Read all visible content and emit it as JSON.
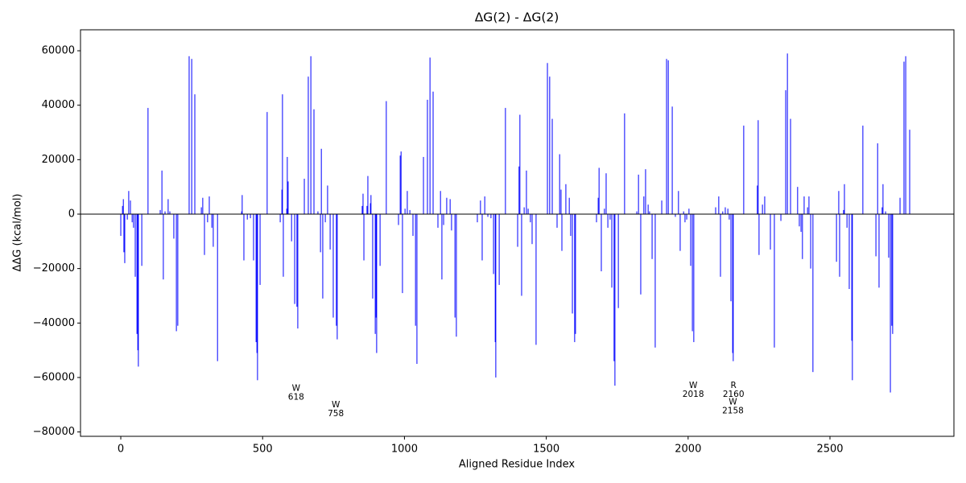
{
  "chart_data": {
    "type": "bar",
    "title": "ΔG(2) - ΔG(2)",
    "x_label": "Aligned Residue Index",
    "y_label": "ΔΔG (kcal/mol)",
    "color": "#0000ff",
    "xlim": [
      -142,
      2937
    ],
    "ylim": [
      -81600,
      67700
    ],
    "xticks": [
      0,
      500,
      1000,
      1500,
      2000,
      2500
    ],
    "yticks": [
      {
        "value": -80000,
        "label": "−80000"
      },
      {
        "value": -60000,
        "label": "−60000"
      },
      {
        "value": -40000,
        "label": "−40000"
      },
      {
        "value": -20000,
        "label": "−20000"
      },
      0,
      20000,
      40000,
      60000
    ],
    "x": [
      0,
      6,
      9,
      11,
      14,
      23,
      28,
      34,
      40,
      45,
      51,
      57,
      60,
      62,
      74,
      96,
      139,
      145,
      150,
      156,
      167,
      173,
      187,
      196,
      201,
      241,
      250,
      261,
      284,
      289,
      295,
      306,
      312,
      321,
      326,
      341,
      426,
      428,
      434,
      446,
      457,
      468,
      477,
      480,
      482,
      491,
      516,
      562,
      568,
      570,
      573,
      585,
      587,
      590,
      602,
      613,
      621,
      624,
      647,
      661,
      670,
      681,
      695,
      704,
      707,
      712,
      721,
      729,
      738,
      749,
      760,
      763,
      851,
      854,
      857,
      868,
      871,
      880,
      882,
      888,
      897,
      900,
      902,
      914,
      936,
      979,
      985,
      988,
      993,
      1002,
      1010,
      1019,
      1030,
      1039,
      1044,
      1067,
      1081,
      1090,
      1101,
      1118,
      1127,
      1132,
      1138,
      1149,
      1161,
      1166,
      1178,
      1183,
      1257,
      1268,
      1274,
      1283,
      1294,
      1305,
      1314,
      1320,
      1322,
      1334,
      1356,
      1399,
      1404,
      1407,
      1413,
      1422,
      1430,
      1436,
      1444,
      1450,
      1464,
      1504,
      1512,
      1521,
      1538,
      1547,
      1552,
      1555,
      1569,
      1581,
      1586,
      1592,
      1600,
      1603,
      1677,
      1683,
      1686,
      1694,
      1705,
      1711,
      1717,
      1725,
      1731,
      1739,
      1742,
      1754,
      1776,
      1819,
      1825,
      1833,
      1844,
      1850,
      1859,
      1864,
      1873,
      1884,
      1907,
      1924,
      1930,
      1944,
      1955,
      1966,
      1972,
      1984,
      1989,
      1995,
      2003,
      2009,
      2015,
      2020,
      2097,
      2108,
      2114,
      2122,
      2131,
      2140,
      2145,
      2151,
      2157,
      2159,
      2196,
      2244,
      2247,
      2250,
      2262,
      2270,
      2290,
      2304,
      2327,
      2344,
      2350,
      2361,
      2386,
      2392,
      2398,
      2403,
      2409,
      2421,
      2426,
      2432,
      2440,
      2523,
      2531,
      2534,
      2548,
      2551,
      2560,
      2568,
      2577,
      2579,
      2616,
      2662,
      2668,
      2673,
      2684,
      2687,
      2696,
      2707,
      2713,
      2718,
      2721,
      2747,
      2761,
      2767,
      2781
    ],
    "values": [
      -8000,
      3000,
      5500,
      -14000,
      -18000,
      -2000,
      8500,
      5000,
      -3000,
      -5000,
      -23000,
      -44000,
      -50000,
      -56000,
      -19000,
      39000,
      1500,
      16000,
      -24000,
      1000,
      5500,
      1000,
      -9000,
      -43000,
      -41000,
      58000,
      57000,
      44000,
      2500,
      6000,
      -15000,
      -3000,
      6500,
      -5000,
      -12000,
      -54000,
      1000,
      7000,
      -17000,
      -2000,
      -1500,
      -17000,
      -47000,
      -51000,
      -61000,
      -26000,
      37500,
      -3000,
      9000,
      44000,
      -23000,
      2000,
      21000,
      12000,
      -10000,
      -33000,
      -34000,
      -42000,
      13000,
      50500,
      58000,
      38500,
      1000,
      -14000,
      24000,
      -31000,
      -3000,
      10500,
      -13000,
      -38000,
      -41000,
      -46000,
      3000,
      7500,
      -17000,
      3000,
      14000,
      4000,
      7000,
      -31000,
      -44000,
      -38000,
      -51000,
      -19000,
      41500,
      -4000,
      21500,
      23000,
      -29000,
      2000,
      8500,
      1500,
      -8000,
      -41000,
      -55000,
      21000,
      42000,
      57500,
      45000,
      -5000,
      8500,
      -24000,
      -4000,
      6000,
      5500,
      -6000,
      -38000,
      -45000,
      -3000,
      5000,
      -17000,
      6500,
      -1000,
      -1500,
      -22000,
      -47000,
      -60000,
      -26000,
      39000,
      -12000,
      17500,
      36500,
      -30000,
      2500,
      16000,
      2000,
      -3000,
      -11000,
      -48000,
      55500,
      50500,
      35000,
      -5000,
      22000,
      9000,
      -13500,
      11000,
      6000,
      -8000,
      -36500,
      -47000,
      -44000,
      -3000,
      6000,
      17000,
      -21000,
      2000,
      15000,
      -5000,
      -2000,
      -27000,
      -54000,
      -63000,
      -34500,
      37000,
      1000,
      14500,
      -29500,
      6500,
      16500,
      3500,
      1000,
      -16500,
      -49000,
      5000,
      57000,
      56500,
      39500,
      -1000,
      8500,
      -13500,
      1000,
      -3000,
      -2000,
      2000,
      -19000,
      -43000,
      -47000,
      2500,
      6500,
      -23000,
      1000,
      2500,
      2000,
      -2000,
      -32000,
      -51000,
      -54000,
      32500,
      10500,
      34500,
      -15000,
      3500,
      6500,
      -13000,
      -49000,
      -2500,
      45500,
      59000,
      35000,
      10000,
      -4500,
      -6500,
      -16500,
      6500,
      2500,
      6500,
      -20000,
      -58000,
      -17500,
      8500,
      -23000,
      1500,
      11000,
      -5000,
      -27500,
      -46500,
      -61000,
      32500,
      -15500,
      26000,
      -27000,
      2500,
      11000,
      1000,
      -16000,
      -65500,
      -41000,
      -44000,
      6000,
      56000,
      58000,
      31000
    ],
    "annotations": [
      {
        "text": "W",
        "x": 618,
        "y": -64000
      },
      {
        "text": "W",
        "x": 758,
        "y": -70000
      },
      {
        "text": "W",
        "x": 2018,
        "y": -63000
      },
      {
        "text": "R",
        "x": 2160,
        "y": -63000
      },
      {
        "text": "W",
        "x": 2158,
        "y": -69000
      }
    ]
  }
}
